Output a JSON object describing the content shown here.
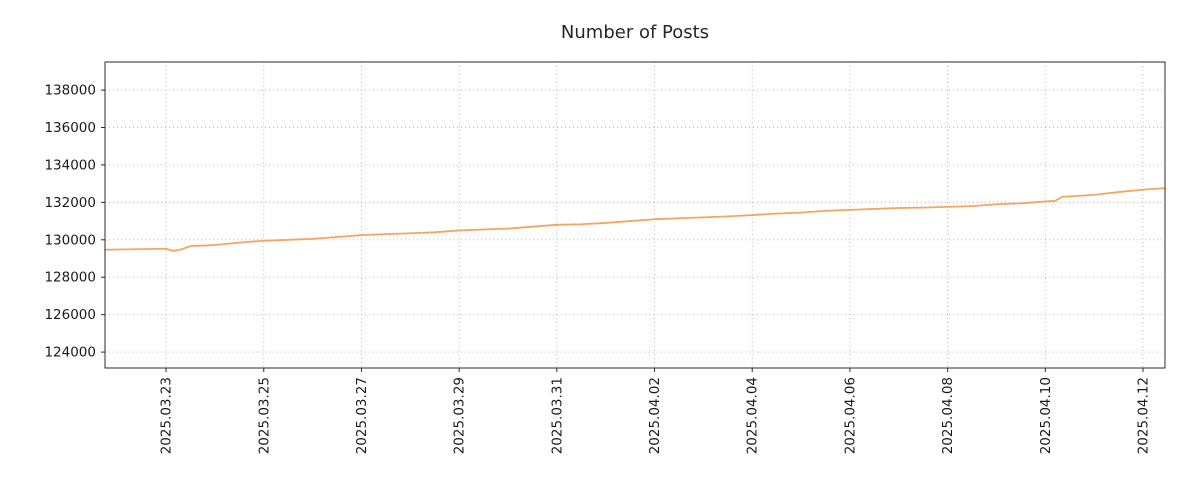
{
  "chart_data": {
    "type": "line",
    "title": "Number of Posts",
    "xlabel": "",
    "ylabel": "",
    "x_unit": "days since 2025-03-21",
    "xlim": [
      0.75,
      22.45
    ],
    "ylim": [
      123150,
      139500
    ],
    "grid": true,
    "legend": "none",
    "colors": {
      "line": "#f2a661",
      "grid": "#b3b3b3",
      "axis": "#2b2b2b",
      "text": "#1a1a1a"
    },
    "x_ticks": [
      {
        "v": 2,
        "label": "2025.03.23"
      },
      {
        "v": 4,
        "label": "2025.03.25"
      },
      {
        "v": 6,
        "label": "2025.03.27"
      },
      {
        "v": 8,
        "label": "2025.03.29"
      },
      {
        "v": 10,
        "label": "2025.03.31"
      },
      {
        "v": 12,
        "label": "2025.04.02"
      },
      {
        "v": 14,
        "label": "2025.04.04"
      },
      {
        "v": 16,
        "label": "2025.04.06"
      },
      {
        "v": 18,
        "label": "2025.04.08"
      },
      {
        "v": 20,
        "label": "2025.04.10"
      },
      {
        "v": 22,
        "label": "2025.04.12"
      }
    ],
    "y_ticks": [
      {
        "v": 124000,
        "label": "124000"
      },
      {
        "v": 126000,
        "label": "126000"
      },
      {
        "v": 128000,
        "label": "128000"
      },
      {
        "v": 130000,
        "label": "130000"
      },
      {
        "v": 132000,
        "label": "132000"
      },
      {
        "v": 134000,
        "label": "134000"
      },
      {
        "v": 136000,
        "label": "136000"
      },
      {
        "v": 138000,
        "label": "138000"
      }
    ],
    "series": [
      {
        "name": "Number of Posts",
        "points": [
          [
            0.75,
            129470
          ],
          [
            1.0,
            129480
          ],
          [
            1.5,
            129500
          ],
          [
            2.0,
            129520
          ],
          [
            2.15,
            129400
          ],
          [
            2.3,
            129480
          ],
          [
            2.5,
            129660
          ],
          [
            3.0,
            129720
          ],
          [
            3.5,
            129850
          ],
          [
            4.0,
            129950
          ],
          [
            4.5,
            130000
          ],
          [
            5.0,
            130050
          ],
          [
            5.5,
            130150
          ],
          [
            6.0,
            130250
          ],
          [
            6.5,
            130300
          ],
          [
            7.0,
            130350
          ],
          [
            7.5,
            130400
          ],
          [
            8.0,
            130500
          ],
          [
            8.5,
            130550
          ],
          [
            9.0,
            130600
          ],
          [
            9.5,
            130700
          ],
          [
            10.0,
            130800
          ],
          [
            10.5,
            130830
          ],
          [
            11.0,
            130900
          ],
          [
            11.5,
            131000
          ],
          [
            12.0,
            131100
          ],
          [
            12.5,
            131150
          ],
          [
            13.0,
            131200
          ],
          [
            13.5,
            131250
          ],
          [
            14.0,
            131320
          ],
          [
            14.5,
            131400
          ],
          [
            15.0,
            131450
          ],
          [
            15.5,
            131550
          ],
          [
            16.0,
            131600
          ],
          [
            16.5,
            131650
          ],
          [
            17.0,
            131700
          ],
          [
            17.5,
            131720
          ],
          [
            18.0,
            131760
          ],
          [
            18.5,
            131800
          ],
          [
            19.0,
            131900
          ],
          [
            19.5,
            131950
          ],
          [
            20.0,
            132050
          ],
          [
            20.2,
            132080
          ],
          [
            20.35,
            132300
          ],
          [
            20.5,
            132320
          ],
          [
            21.0,
            132400
          ],
          [
            21.5,
            132550
          ],
          [
            22.0,
            132680
          ],
          [
            22.45,
            132760
          ]
        ]
      }
    ]
  }
}
